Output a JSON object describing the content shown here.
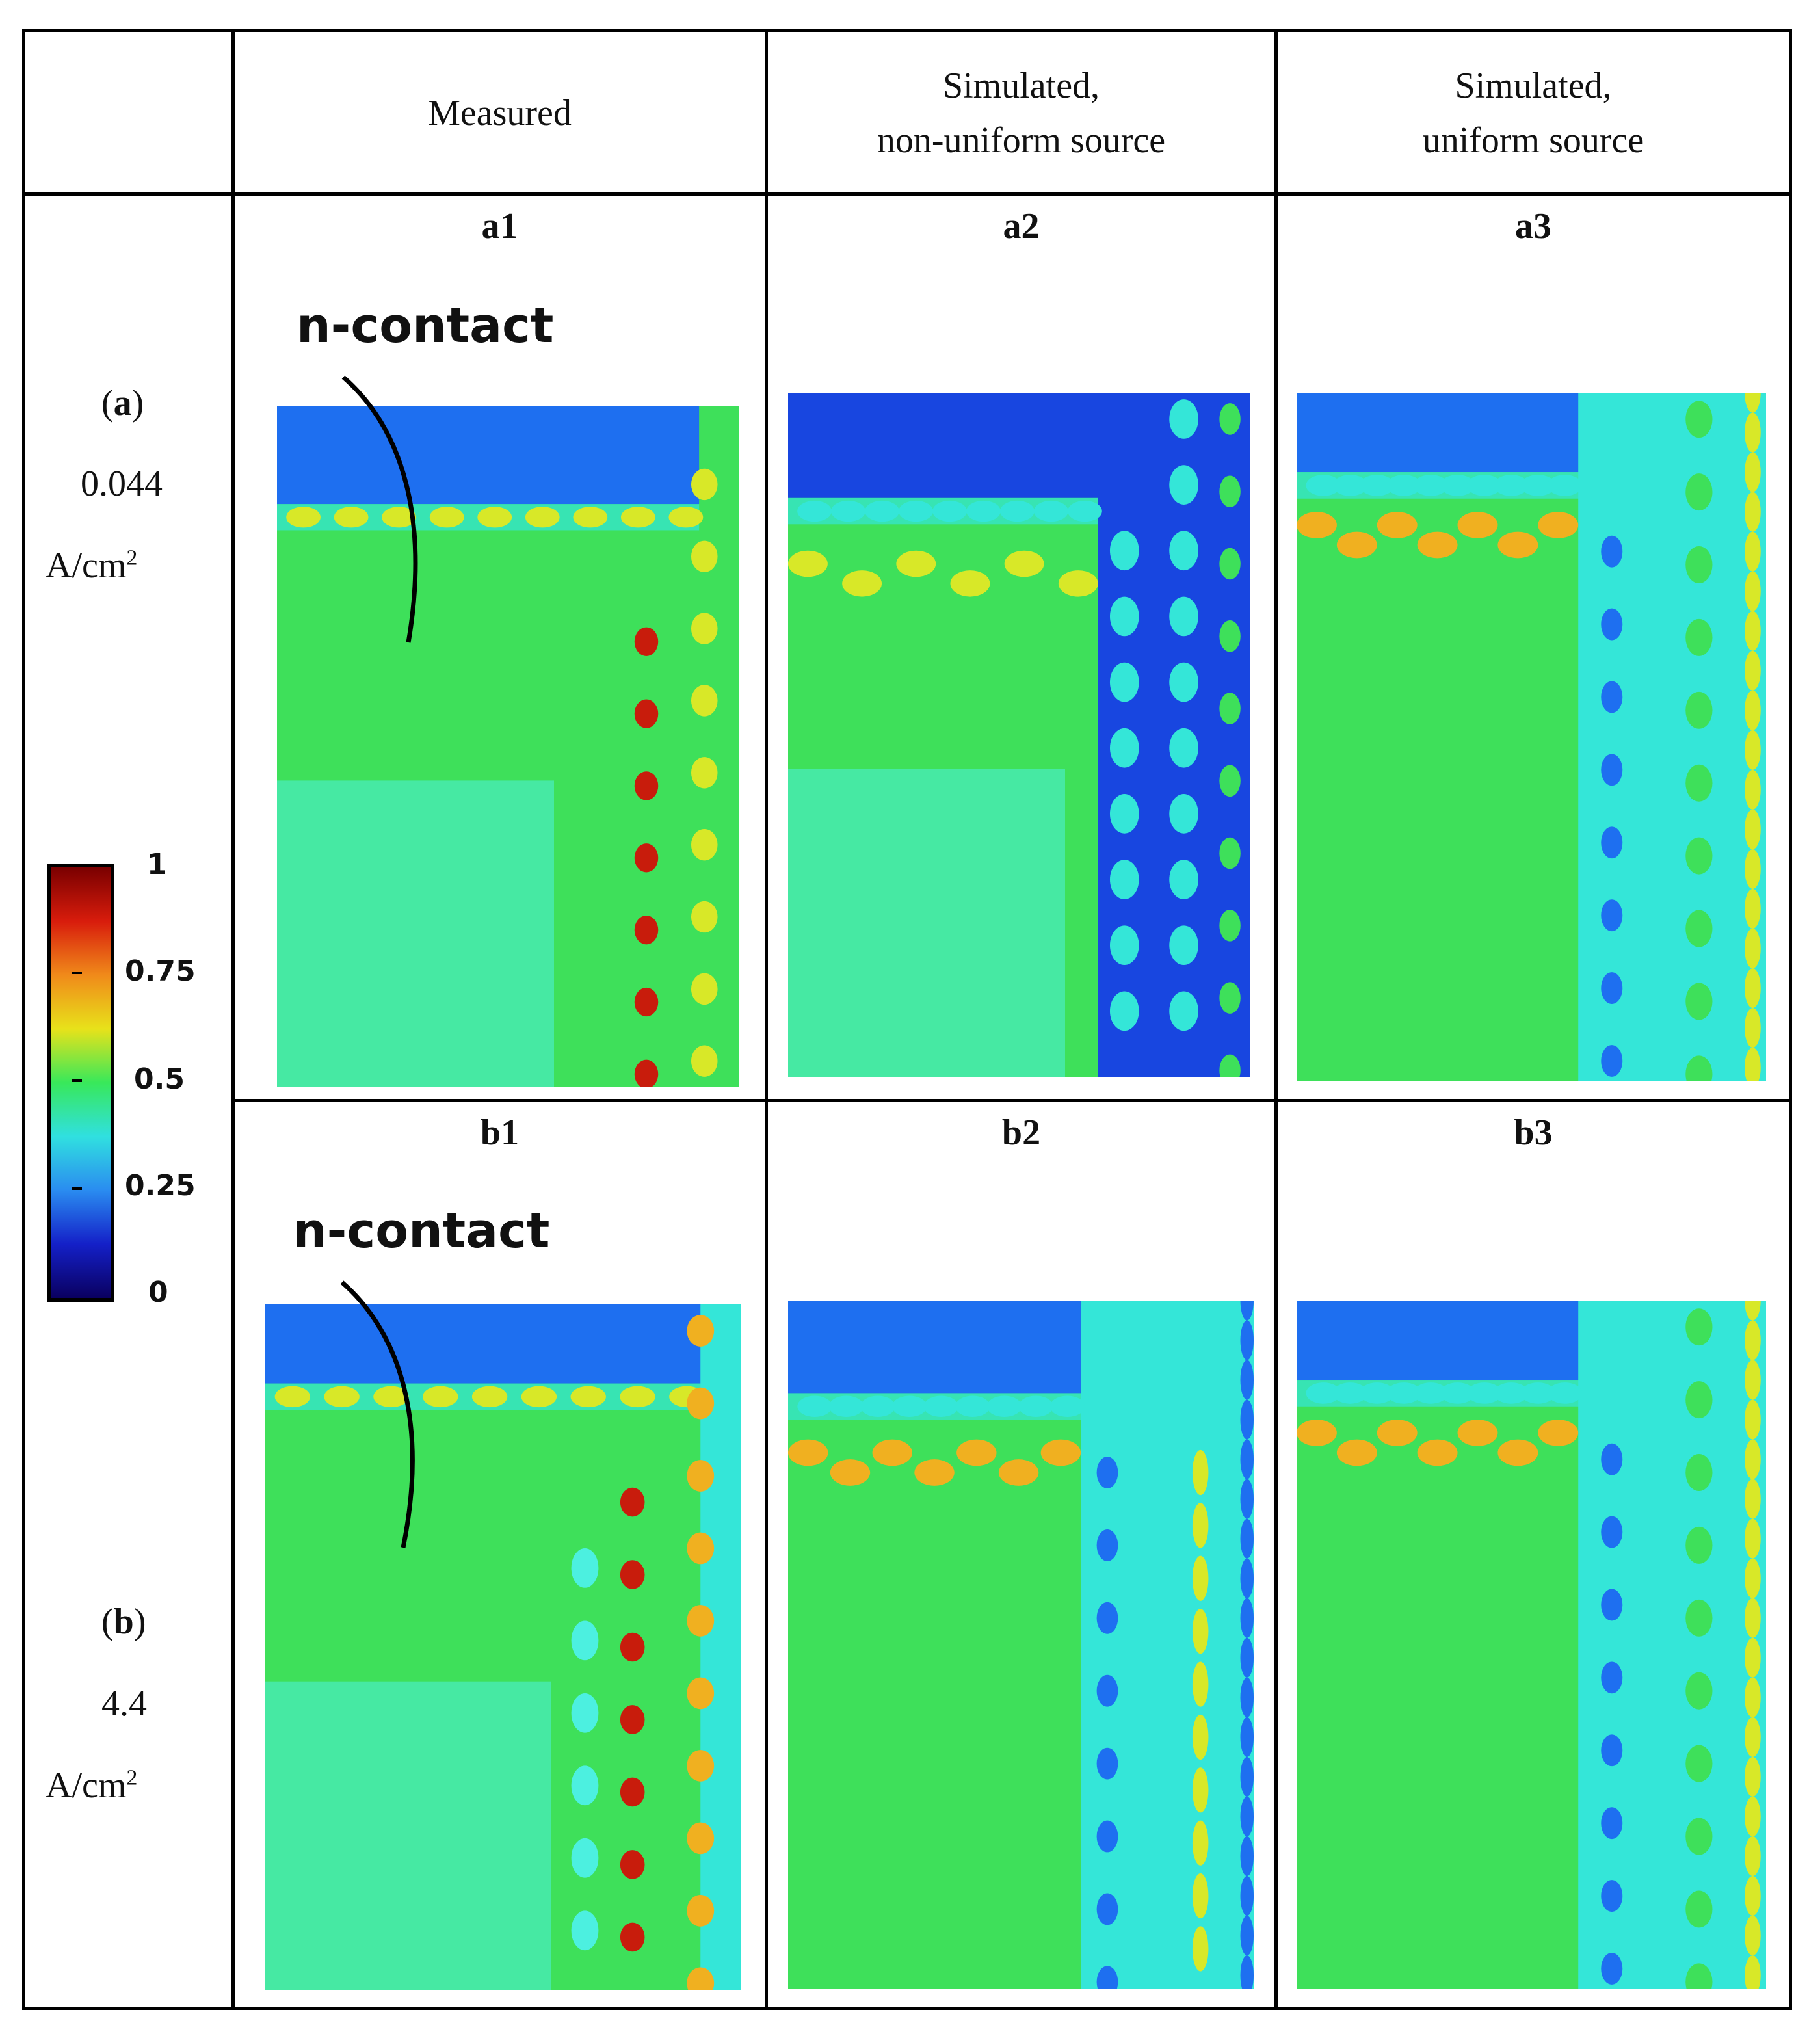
{
  "header": {
    "col1": "Measured",
    "col2_line1": "Simulated,",
    "col2_line2": "non-uniform source",
    "col3_line1": "Simulated,",
    "col3_line2": "uniform source"
  },
  "rows": [
    {
      "letter": "a",
      "value": "0.044",
      "unit": "A/cm",
      "unit_sup": "2",
      "panels": [
        "a1",
        "a2",
        "a3"
      ]
    },
    {
      "letter": "b",
      "value": "4.4",
      "unit": "A/cm",
      "unit_sup": "2",
      "panels": [
        "b1",
        "b2",
        "b3"
      ]
    }
  ],
  "annotation": "n-contact",
  "colorbar": {
    "ticks": [
      "1",
      "0.75",
      "0.5",
      "0.25",
      "0"
    ],
    "colors": [
      "#7a0000",
      "#d81c0c",
      "#f08a1a",
      "#e8e21a",
      "#38e85a",
      "#30e0e0",
      "#2a8cf0",
      "#1420c8",
      "#0a0060"
    ]
  }
}
